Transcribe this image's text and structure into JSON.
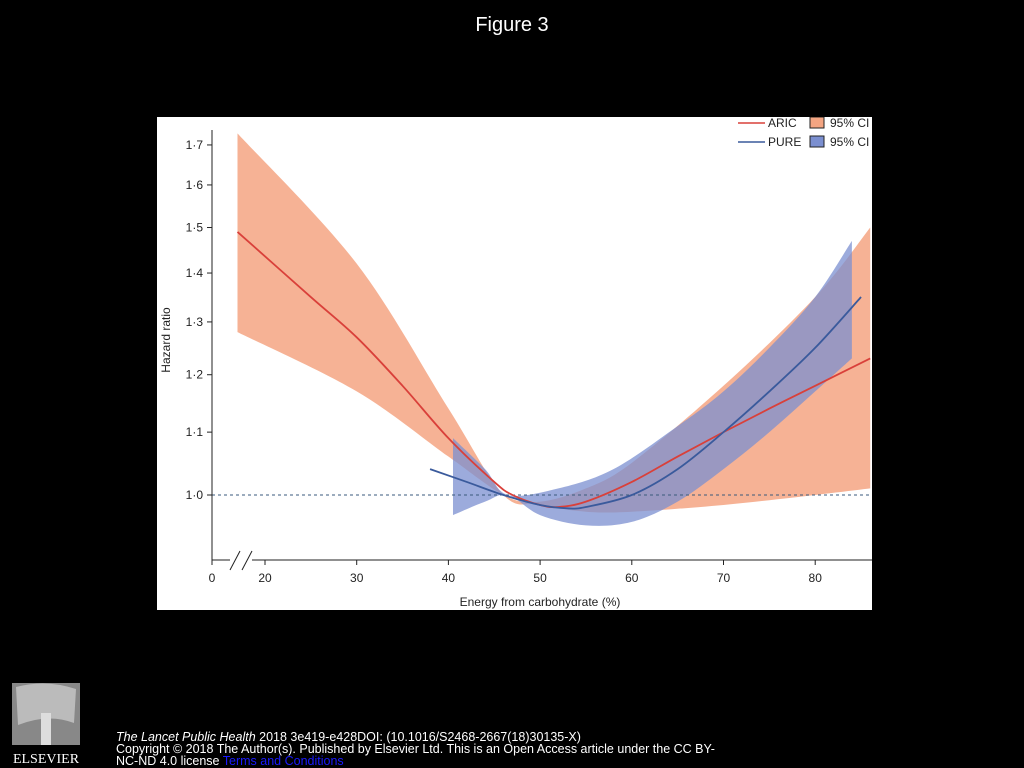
{
  "title": "Figure 3",
  "footer": {
    "journal": "The Lancet Public Health",
    "citation": " 2018 3e419-e428DOI: (10.1016/S2468-2667(18)30135-X)",
    "copyright": "Copyright © 2018 The Author(s). Published by Elsevier Ltd. This is an Open Access article under the CC BY-NC-ND 4.0 license",
    "link": "Terms and Conditions",
    "logo_text": "ELSEVIER"
  },
  "chart_data": {
    "type": "line",
    "xlabel": "Energy from carbohydrate (%)",
    "ylabel": "Hazard ratio",
    "xticks": [
      0,
      20,
      30,
      40,
      50,
      60,
      70,
      80
    ],
    "yticks": [
      1.0,
      1.1,
      1.2,
      1.3,
      1.4,
      1.5,
      1.6,
      1.7
    ],
    "ytick_labels": [
      "1·0",
      "1·1",
      "1·2",
      "1·3",
      "1·4",
      "1·5",
      "1·6",
      "1·7"
    ],
    "xlim": [
      0,
      86
    ],
    "ylim": [
      0.958,
      1.75
    ],
    "yscale": "log",
    "reference_line": 1.0,
    "legend_placement": "top-right",
    "legend": [
      {
        "line": "ARIC",
        "band": "95% CI"
      },
      {
        "line": "PURE",
        "band": "95% CI"
      }
    ],
    "colors": {
      "ARIC": "#d9403a",
      "ARIC_CI": "#f4a582",
      "PURE": "#3a5a9c",
      "PURE_CI": "#7b8fd0"
    },
    "series": [
      {
        "name": "ARIC",
        "x": [
          17,
          25,
          30,
          35,
          40,
          45,
          47,
          50,
          52,
          55,
          60,
          65,
          70,
          75,
          80,
          86
        ],
        "y": [
          1.49,
          1.35,
          1.27,
          1.18,
          1.09,
          1.02,
          1.0,
          0.985,
          0.982,
          0.99,
          1.02,
          1.06,
          1.1,
          1.14,
          1.18,
          1.23
        ],
        "ci_upper": {
          "x": [
            17,
            30,
            40,
            46,
            50,
            55,
            60,
            70,
            80,
            86
          ],
          "y": [
            1.73,
            1.42,
            1.14,
            1.0,
            0.99,
            1.01,
            1.05,
            1.18,
            1.35,
            1.5
          ]
        },
        "ci_lower": {
          "x": [
            17,
            30,
            40,
            46,
            50,
            55,
            60,
            70,
            80,
            86
          ],
          "y": [
            1.28,
            1.17,
            1.06,
            1.0,
            0.985,
            0.975,
            0.975,
            0.985,
            1.0,
            1.01
          ]
        }
      },
      {
        "name": "PURE",
        "x": [
          38,
          42,
          46,
          50,
          53,
          55,
          60,
          65,
          70,
          75,
          80,
          85
        ],
        "y": [
          1.04,
          1.02,
          1.0,
          0.985,
          0.98,
          0.982,
          1.0,
          1.04,
          1.1,
          1.17,
          1.25,
          1.35
        ],
        "ci_upper": {
          "x": [
            40.5,
            44,
            46.5,
            52,
            58,
            65,
            70,
            75,
            80,
            84
          ],
          "y": [
            1.09,
            1.04,
            1.0,
            1.01,
            1.04,
            1.11,
            1.17,
            1.25,
            1.35,
            1.47
          ]
        },
        "ci_lower": {
          "x": [
            40.5,
            44,
            46.5,
            50,
            55,
            60,
            65,
            70,
            75,
            80,
            84
          ],
          "y": [
            0.97,
            0.99,
            1.0,
            0.97,
            0.955,
            0.96,
            0.99,
            1.04,
            1.1,
            1.17,
            1.23
          ]
        }
      }
    ]
  }
}
